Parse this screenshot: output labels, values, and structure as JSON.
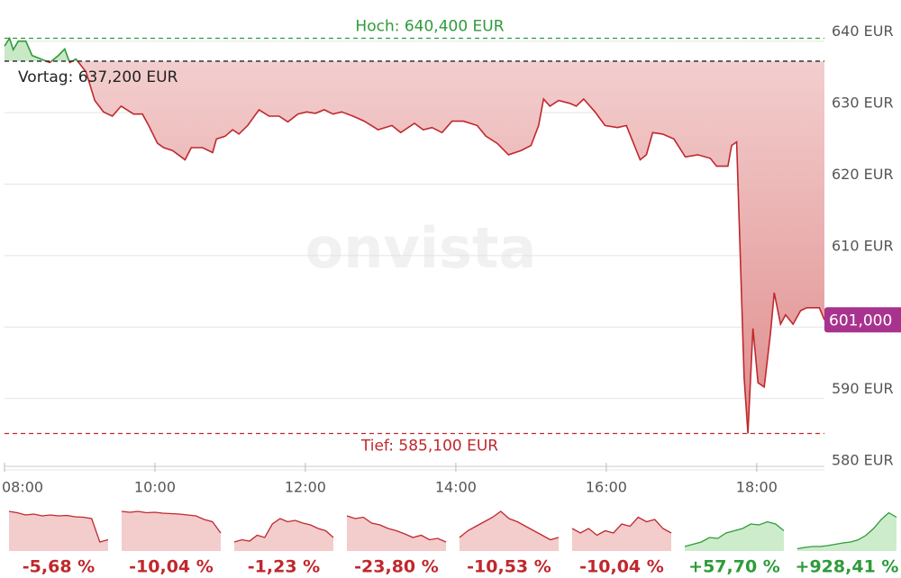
{
  "chart_data": {
    "type": "line",
    "watermark": "onvista",
    "x": [
      480,
      484,
      487,
      491,
      497,
      502,
      509,
      516,
      523,
      528,
      532,
      537,
      545,
      552,
      559,
      566,
      573,
      583,
      590,
      595,
      602,
      607,
      614,
      624,
      629,
      638,
      646,
      649,
      656,
      662,
      667,
      674,
      683,
      691,
      699,
      706,
      714,
      721,
      728,
      735,
      742,
      749,
      758,
      767,
      778,
      789,
      796,
      807,
      814,
      821,
      829,
      837,
      846,
      857,
      864,
      873,
      882,
      892,
      900,
      906,
      910,
      915,
      922,
      931,
      936,
      942,
      951,
      959,
      969,
      976,
      987,
      992,
      997,
      1005,
      1014,
      1023,
      1033,
      1043,
      1048,
      1057,
      1060,
      1064,
      1070,
      1073,
      1077,
      1081,
      1086,
      1091,
      1094,
      1099,
      1103,
      1109,
      1115,
      1120,
      1130,
      1134
    ],
    "values": [
      639.3,
      640.4,
      638.8,
      640.0,
      640.0,
      638.0,
      637.5,
      637.0,
      638.0,
      638.9,
      637.0,
      637.5,
      635.7,
      631.7,
      630.1,
      629.5,
      630.9,
      629.8,
      629.8,
      628.2,
      625.7,
      625.1,
      624.7,
      623.4,
      625.1,
      625.1,
      624.4,
      626.3,
      626.7,
      627.6,
      627.0,
      628.2,
      630.4,
      629.5,
      629.5,
      628.7,
      629.8,
      630.1,
      629.9,
      630.4,
      629.8,
      630.1,
      629.5,
      628.8,
      627.6,
      628.2,
      627.2,
      628.5,
      627.6,
      627.9,
      627.2,
      628.8,
      628.8,
      628.2,
      626.7,
      625.7,
      624.1,
      624.7,
      625.4,
      628.2,
      631.9,
      630.9,
      631.7,
      631.3,
      630.9,
      631.9,
      630.1,
      628.2,
      627.9,
      628.2,
      623.4,
      624.1,
      627.2,
      627.0,
      626.3,
      623.8,
      624.1,
      623.6,
      622.5,
      622.5,
      625.4,
      625.9,
      592.9,
      585.1,
      599.8,
      592.2,
      591.6,
      599.2,
      604.8,
      600.4,
      601.7,
      600.4,
      602.3,
      602.7,
      602.7,
      601.0
    ],
    "up_color": "#2e9b3a",
    "down_color": "#c0282d",
    "xlim": [
      480,
      1134
    ],
    "xticks": [
      {
        "value": 480,
        "label": "08:00"
      },
      {
        "value": 600,
        "label": "10:00"
      },
      {
        "value": 720,
        "label": "12:00"
      },
      {
        "value": 840,
        "label": "14:00"
      },
      {
        "value": 960,
        "label": "16:00"
      },
      {
        "value": 1080,
        "label": "18:00"
      }
    ],
    "ylim": [
      580,
      645
    ],
    "yticks": [
      {
        "value": 580,
        "label": "580 EUR"
      },
      {
        "value": 590,
        "label": "590 EUR"
      },
      {
        "value": 600,
        "label": ""
      },
      {
        "value": 610,
        "label": "610 EUR"
      },
      {
        "value": 620,
        "label": "620 EUR"
      },
      {
        "value": 630,
        "label": "630 EUR"
      },
      {
        "value": 640,
        "label": "640 EUR"
      }
    ],
    "grid": true,
    "high": {
      "value": 640.4,
      "label": "Hoch: 640,400 EUR"
    },
    "previous_close": {
      "value": 637.2,
      "label": "Vortag: 637,200 EUR"
    },
    "low": {
      "value": 585.1,
      "label": "Tief: 585,100 EUR"
    },
    "last": {
      "value": 601.0,
      "label": "601,000"
    },
    "periods": [
      {
        "values": [
          88,
          85,
          80,
          82,
          78,
          80,
          78,
          79,
          76,
          75,
          72,
          20,
          25
        ],
        "change": -5.68,
        "change_label": "-5,68 %"
      },
      {
        "values": [
          88,
          86,
          88,
          85,
          86,
          84,
          83,
          82,
          80,
          78,
          70,
          65,
          40
        ],
        "change": -10.04,
        "change_label": "-10,04 %"
      },
      {
        "values": [
          20,
          25,
          22,
          35,
          30,
          60,
          72,
          65,
          68,
          62,
          58,
          50,
          45,
          30
        ],
        "change": -1.23,
        "change_label": "-1,23 %"
      },
      {
        "values": [
          78,
          72,
          75,
          62,
          58,
          50,
          45,
          38,
          30,
          35,
          25,
          28,
          20
        ],
        "change": -23.8,
        "change_label": "-23,80 %"
      },
      {
        "values": [
          30,
          45,
          55,
          65,
          75,
          88,
          72,
          65,
          55,
          45,
          35,
          25,
          30
        ],
        "change": -10.53,
        "change_label": "-10,53 %"
      },
      {
        "values": [
          50,
          40,
          50,
          35,
          45,
          40,
          60,
          55,
          75,
          65,
          70,
          50,
          40
        ],
        "change": -10.04,
        "change_label": "-10,04 %"
      },
      {
        "values": [
          10,
          15,
          20,
          30,
          28,
          40,
          45,
          50,
          60,
          58,
          65,
          60,
          45
        ],
        "change": 57.7,
        "change_label": "+57,70 %"
      },
      {
        "values": [
          5,
          8,
          10,
          10,
          12,
          15,
          18,
          20,
          25,
          35,
          50,
          70,
          85,
          75
        ],
        "change": 928.41,
        "change_label": "+928,41 %"
      }
    ]
  }
}
